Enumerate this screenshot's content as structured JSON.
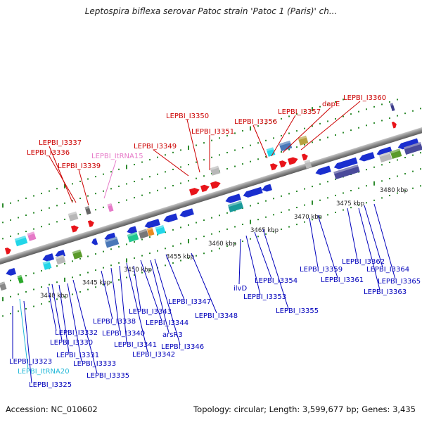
{
  "title": "Leptospira biflexa serovar Patoc strain 'Patoc 1 (Paris)' ch...",
  "footer": {
    "accession": "Accession: NC_010602",
    "topology": "Topology: circular; Length: 3,599,677 bp; Genes: 3,435"
  },
  "colors": {
    "backbone": "#8c8c8c",
    "forward_gene": "#e8141a",
    "reverse_gene": "#1a2ecf",
    "forward_label": "#cc0000",
    "reverse_label": "#0000bb",
    "rna_pink": "#e67ac8",
    "rna_cyan": "#22b8d8",
    "tick": "#2e8b2e"
  },
  "scale_labels": [
    "3440 kbp",
    "3445 kbp",
    "3450 kbp",
    "3455 kbp",
    "3460 kbp",
    "3465 kbp",
    "3470 kbp",
    "3475 kbp",
    "3480 kbp"
  ],
  "top_labels": [
    "LEPBI_I3337",
    "LEPBI_I3336",
    "LEPBI_I3339",
    "LEPBI_ItRNA15",
    "LEPBI_I3349",
    "LEPBI_I3350",
    "LEPBI_I3351",
    "LEPBI_I3356",
    "LEPBI_I3357",
    "dapE",
    "LEPBI_I3360"
  ],
  "bottom_labels": [
    "LEPBI_I3323",
    "LEPBI_ItRNA20",
    "LEPBI_I3325",
    "LEPBI_I3332",
    "LEPBI_I3330",
    "LEPBI_I3331",
    "LEPBI_I3333",
    "LEPBI_I3335",
    "LEPBI_I3338",
    "LEPBI_I3340",
    "LEPBI_I3341",
    "LEPBI_I3342",
    "LEPBI_I3343",
    "LEPBI_I3344",
    "arsR3",
    "LEPBI_I3346",
    "LEPBI_I3347",
    "LEPBI_I3348",
    "ilvD",
    "LEPBI_I3353",
    "LEPBI_I3354",
    "LEPBI_I3355",
    "LEPBI_I3359",
    "LEPBI_I3361",
    "LEPBI_I3362",
    "LEPBI_I3364",
    "LEPBI_I3365",
    "LEPBI_I3363"
  ]
}
